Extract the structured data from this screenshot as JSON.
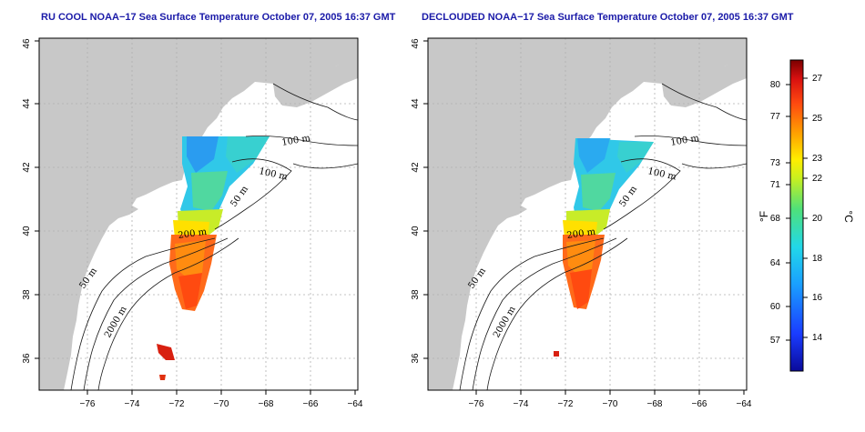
{
  "panels": [
    {
      "title": "RU COOL NOAA−17 Sea Surface Temperature October 07, 2005 16:37 GMT",
      "contour_labels": [
        "100 m",
        "100 m",
        "50 m",
        "200 m",
        "50 m",
        "2000 m"
      ]
    },
    {
      "title": "DECLOUDED NOAA−17 Sea Surface Temperature October 07, 2005 16:37 GMT",
      "contour_labels": [
        "100 m",
        "100 m",
        "50 m",
        "200 m",
        "50 m",
        "2000 m"
      ]
    }
  ],
  "axes": {
    "lon_ticks": [
      "−76",
      "−74",
      "−72",
      "−70",
      "−68",
      "−66",
      "−64"
    ],
    "lat_ticks": [
      "36",
      "38",
      "40",
      "42",
      "44",
      "46"
    ],
    "lon_range": [
      -77.2,
      -62.8
    ],
    "lat_range": [
      35.0,
      46.0
    ]
  },
  "colorbar": {
    "fahrenheit_ticks": [
      "80",
      "77",
      "73",
      "71",
      "68",
      "64",
      "60",
      "57"
    ],
    "celsius_ticks": [
      "27",
      "25",
      "23",
      "22",
      "20",
      "18",
      "16",
      "14"
    ],
    "fahrenheit_unit": "°F",
    "celsius_unit": "°C",
    "range_c": [
      12,
      28
    ]
  },
  "colors": {
    "land": "#c8c8c8",
    "ocean": "#ffffff",
    "grid": "#b0b0b0",
    "title": "#1a1aa8"
  }
}
